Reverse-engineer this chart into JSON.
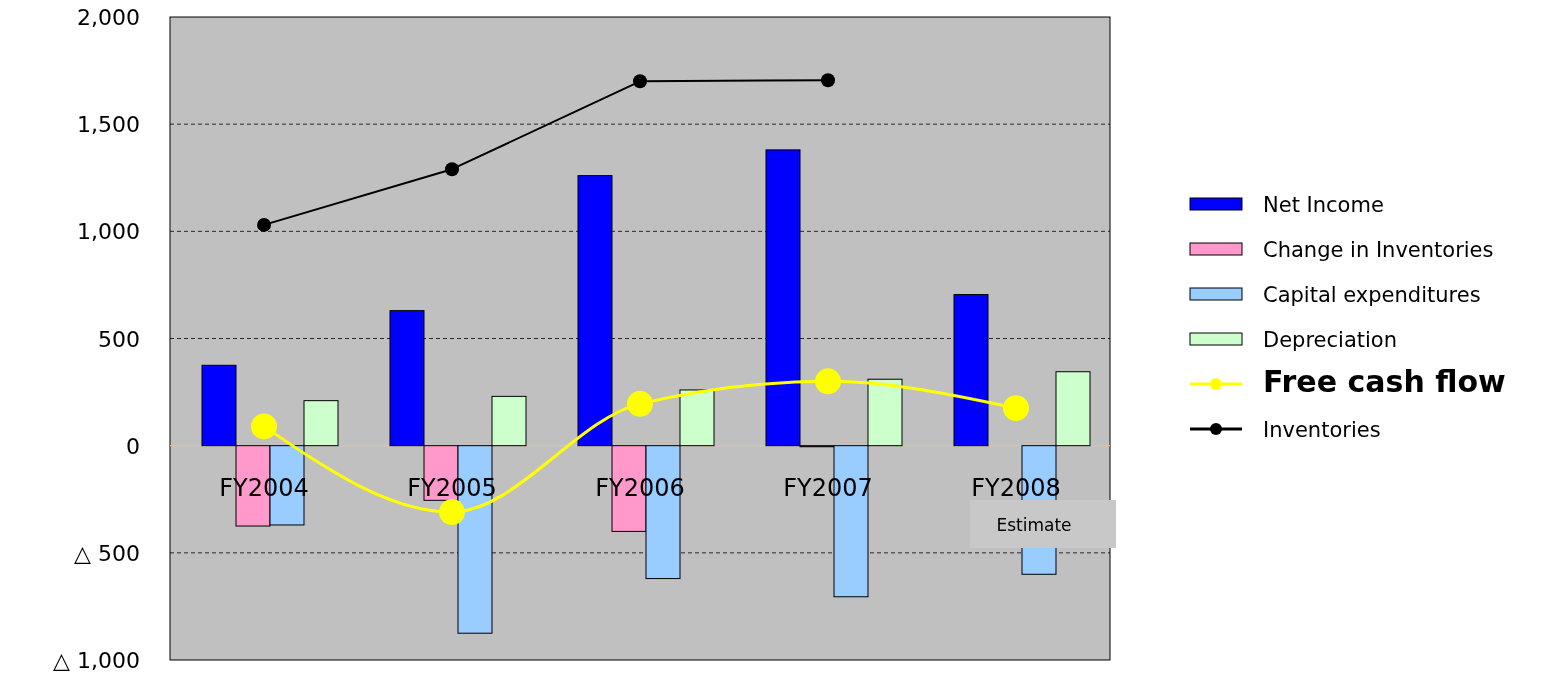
{
  "chart_data": {
    "type": "bar",
    "categories": [
      "FY2004",
      "FY2005",
      "FY2006",
      "FY2007",
      "FY2008"
    ],
    "series": [
      {
        "name": "Net Income",
        "color": "#0000ff",
        "values": [
          375,
          630,
          1260,
          1380,
          705
        ]
      },
      {
        "name": "Change in Inventories",
        "color": "#ff99cc",
        "values": [
          -375,
          -255,
          -400,
          -5,
          null
        ]
      },
      {
        "name": "Capital expenditures",
        "color": "#99ccff",
        "values": [
          -370,
          -875,
          -620,
          -705,
          -600
        ]
      },
      {
        "name": "Depreciation",
        "color": "#ccffcc",
        "values": [
          210,
          230,
          260,
          310,
          345
        ]
      },
      {
        "name": "Free cash flow",
        "type": "line",
        "color": "#ffff00",
        "marker": "circle",
        "values": [
          90,
          -310,
          195,
          300,
          175
        ]
      },
      {
        "name": "Inventories",
        "type": "line",
        "color": "#000000",
        "marker": "circle",
        "values": [
          1030,
          1290,
          1700,
          1705,
          null
        ]
      }
    ],
    "ylim": [
      -1000,
      2000
    ],
    "yticks": [
      {
        "value": -1000,
        "label": "△ 1,000"
      },
      {
        "value": -500,
        "label": "△ 500"
      },
      0,
      {
        "value": 500,
        "label": "500"
      },
      {
        "value": 1000,
        "label": "1,000"
      },
      {
        "value": 1500,
        "label": "1,500"
      },
      {
        "value": 2000,
        "label": "2,000"
      }
    ],
    "grid": "y",
    "legend": "right",
    "annotations": [
      "Estimate"
    ]
  }
}
